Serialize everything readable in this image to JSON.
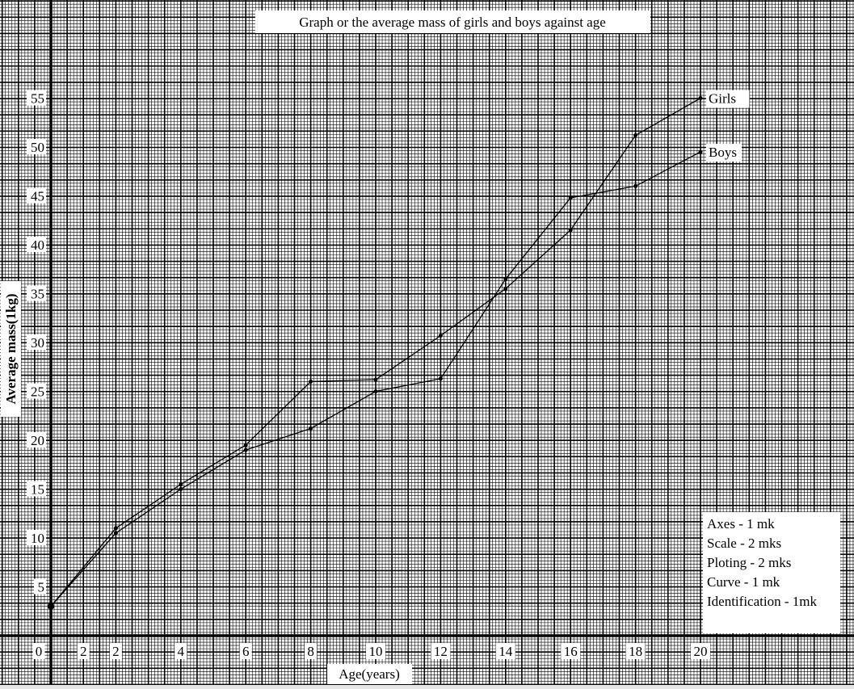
{
  "chart_data": {
    "type": "line",
    "title": "Graph or the average mass of girls and boys against age",
    "xlabel": "Age(years)",
    "ylabel": "Average mass(1kg)",
    "x": [
      0,
      2,
      4,
      6,
      8,
      10,
      12,
      14,
      16,
      18,
      20
    ],
    "x_ticks": [
      "0",
      "2",
      "2",
      "4",
      "6",
      "8",
      "10",
      "12",
      "14",
      "16",
      "18",
      "20"
    ],
    "y_ticks": [
      "5",
      "10",
      "15",
      "20",
      "25",
      "30",
      "35",
      "40",
      "45",
      "50",
      "55"
    ],
    "xlim": [
      0,
      24.4
    ],
    "ylim": [
      0,
      61
    ],
    "grid": true,
    "series": [
      {
        "name": "Girls",
        "values": [
          3,
          11,
          15.5,
          19.5,
          26,
          26.2,
          30.7,
          35.5,
          41.5,
          51.2,
          55
        ]
      },
      {
        "name": "Boys",
        "values": [
          3,
          10.5,
          15,
          19,
          21.2,
          25,
          26.3,
          36.5,
          44.8,
          46,
          49.5
        ]
      }
    ],
    "annotations": [
      "Axes  -  1 mk",
      "Scale  -  2 mks",
      "Ploting - 2 mks",
      "Curve - 1 mk",
      "Identification - 1mk"
    ]
  }
}
